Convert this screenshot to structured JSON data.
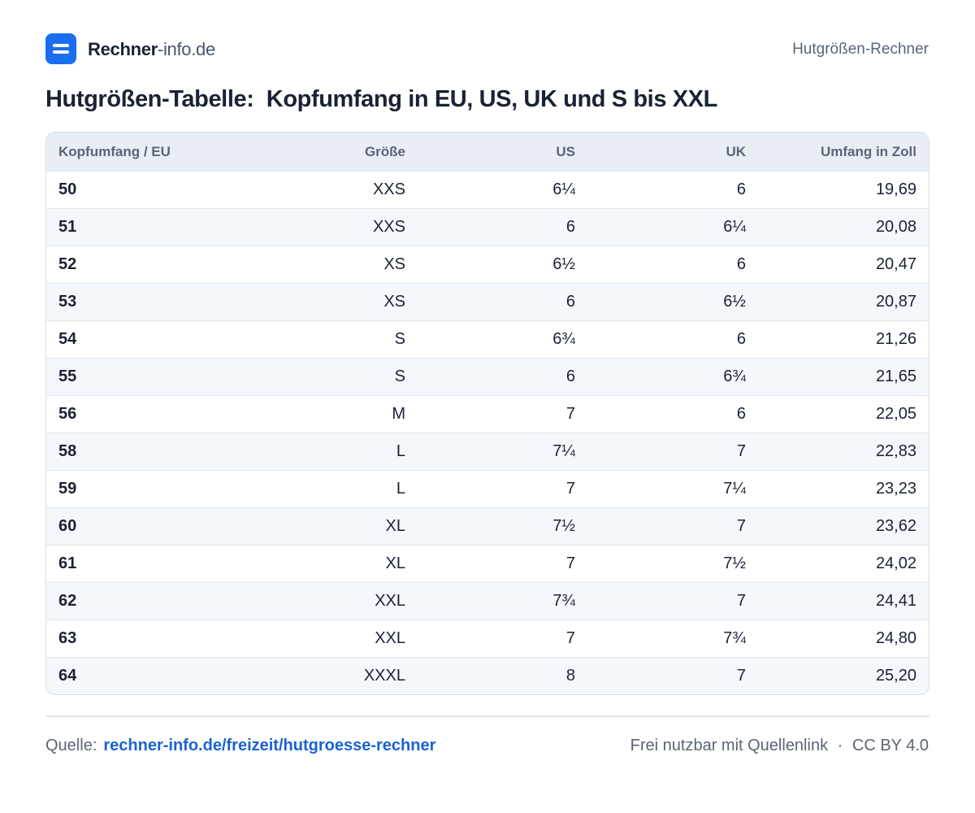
{
  "header": {
    "brand": {
      "name": "Rechner",
      "suffix": "-info.de"
    },
    "page_label": "Hutgrößen-Rechner"
  },
  "title": "Hutgrößen-Tabelle:  Kopfumfang in EU, US, UK und S bis XXL",
  "table": {
    "columns": [
      "Kopfumfang / EU",
      "Größe",
      "US",
      "UK",
      "Umfang in Zoll"
    ],
    "rows": [
      [
        "50",
        "XXS",
        "6¼",
        "6",
        "19,69"
      ],
      [
        "51",
        "XXS",
        "6",
        "6¼",
        "20,08"
      ],
      [
        "52",
        "XS",
        "6½",
        "6",
        "20,47"
      ],
      [
        "53",
        "XS",
        "6",
        "6½",
        "20,87"
      ],
      [
        "54",
        "S",
        "6¾",
        "6",
        "21,26"
      ],
      [
        "55",
        "S",
        "6",
        "6¾",
        "21,65"
      ],
      [
        "56",
        "M",
        "7",
        "6",
        "22,05"
      ],
      [
        "58",
        "L",
        "7¼",
        "7",
        "22,83"
      ],
      [
        "59",
        "L",
        "7",
        "7¼",
        "23,23"
      ],
      [
        "60",
        "XL",
        "7½",
        "7",
        "23,62"
      ],
      [
        "61",
        "XL",
        "7",
        "7½",
        "24,02"
      ],
      [
        "62",
        "XXL",
        "7¾",
        "7",
        "24,41"
      ],
      [
        "63",
        "XXL",
        "7",
        "7¾",
        "24,80"
      ],
      [
        "64",
        "XXXL",
        "8",
        "7",
        "25,20"
      ]
    ]
  },
  "footer": {
    "source_label": "Quelle:",
    "source_link": "rechner-info.de/freizeit/hutgroesse-rechner",
    "license_note": "Frei nutzbar mit Quellenlink",
    "separator": "·",
    "license": "CC BY 4.0"
  }
}
